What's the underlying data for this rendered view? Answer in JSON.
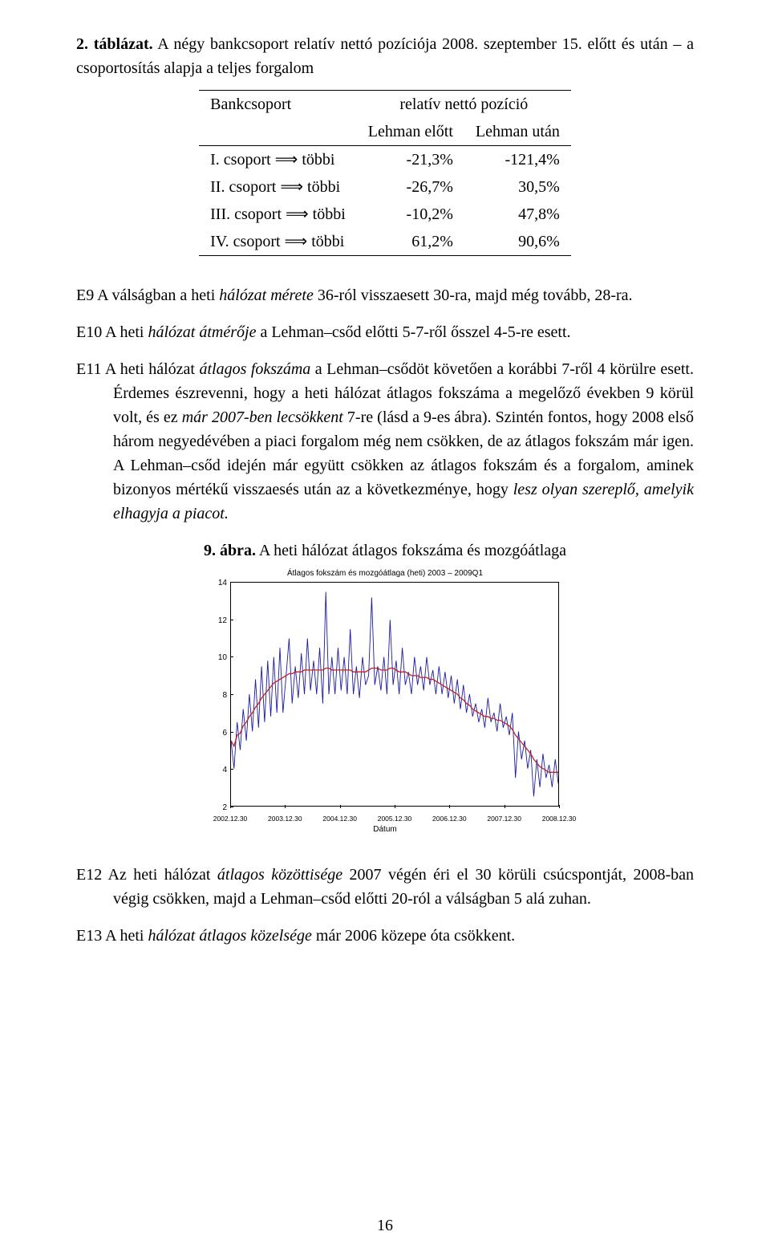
{
  "table_caption": {
    "label": "2. táblázat.",
    "text_a": "A négy bankcsoport relatív nettó pozíciója 2008. szeptember 15. előtt és után – a csoportosítás alapja a teljes forgalom"
  },
  "table": {
    "type": "table",
    "columns": [
      "Bankcsoport",
      "relatív nettó pozíció"
    ],
    "subcolumns": [
      "Lehman előtt",
      "Lehman után"
    ],
    "rows": [
      {
        "label": "I. csoport ⟹ többi",
        "before": "-21,3%",
        "after": "-121,4%"
      },
      {
        "label": "II. csoport ⟹ többi",
        "before": "-26,7%",
        "after": "30,5%"
      },
      {
        "label": "III. csoport ⟹ többi",
        "before": "-10,2%",
        "after": "47,8%"
      },
      {
        "label": "IV. csoport ⟹ többi",
        "before": "61,2%",
        "after": "90,6%"
      }
    ]
  },
  "paragraphs": {
    "e9": "E9 A válságban a heti hálózat mérete 36-ról visszaesett 30-ra, majd még tovább, 28-ra.",
    "e10": "E10 A heti hálózat átmérője a Lehman–csőd előtti 5-7-ről ősszel 4-5-re esett.",
    "e11": "E11 A heti hálózat átlagos fokszáma a Lehman–csődöt követően a korábbi 7-ről 4 körülre esett. Érdemes észrevenni, hogy a heti hálózat átlagos fokszáma a megelőző években 9 körül volt, és ez már 2007-ben lecsökkent 7-re (lásd a 9-es ábra). Szintén fontos, hogy 2008 első három negyedévében a piaci forgalom még nem csökken, de az átlagos fokszám már igen. A Lehman–csőd idején már együtt csökken az átlagos fokszám és a forgalom, aminek bizonyos mértékű visszaesés után az a következménye, hogy lesz olyan szereplő, amelyik elhagyja a piacot.",
    "e12": "E12 Az heti hálózat átlagos közöttisége 2007 végén éri el 30 körüli csúcspontját, 2008-ban végig csökken, majd a Lehman–csőd előtti 20-ról a válságban 5 alá zuhan.",
    "e13": "E13 A heti hálózat átlagos közelsége már 2006 közepe óta csökkent."
  },
  "fig_caption": {
    "label": "9. ábra.",
    "text": "A heti hálózat átlagos fokszáma és mozgóátlaga"
  },
  "chart": {
    "type": "line",
    "title": "Átlagos fokszám és mozgóátlaga (heti) 2003 – 2009Q1",
    "xlabel": "Dátum",
    "ylim": [
      2,
      14
    ],
    "ytick_step": 2,
    "yticks": [
      2,
      4,
      6,
      8,
      10,
      12,
      14
    ],
    "xticks": [
      "2002.12.30",
      "2003.12.30",
      "2004.12.30",
      "2005.12.30",
      "2006.12.30",
      "2007.12.30",
      "2008.12.30"
    ],
    "background_color": "#ffffff",
    "axis_color": "#000000",
    "series": [
      {
        "name": "raw",
        "color": "#1a1aa0",
        "width": 0.9,
        "y": [
          5.5,
          4.0,
          6.5,
          5.0,
          7.2,
          5.5,
          8.0,
          6.0,
          8.8,
          6.2,
          9.5,
          6.5,
          9.8,
          6.8,
          10.0,
          7.0,
          10.5,
          7.0,
          9.0,
          11.0,
          7.5,
          9.5,
          7.8,
          10.2,
          8.0,
          11.0,
          8.2,
          9.8,
          8.0,
          10.5,
          7.5,
          13.5,
          8.0,
          10.0,
          8.0,
          10.5,
          8.2,
          10.0,
          8.0,
          11.5,
          8.0,
          9.5,
          7.8,
          10.0,
          8.5,
          9.0,
          13.2,
          8.5,
          9.5,
          8.2,
          10.0,
          8.0,
          12.0,
          8.5,
          9.8,
          8.0,
          10.5,
          8.5,
          9.2,
          8.0,
          10.0,
          8.5,
          9.5,
          8.2,
          10.0,
          8.5,
          9.3,
          8.0,
          9.5,
          8.0,
          9.2,
          7.8,
          9.0,
          7.5,
          8.8,
          7.2,
          8.5,
          7.0,
          8.0,
          6.8,
          7.5,
          6.5,
          7.2,
          6.2,
          7.8,
          6.5,
          7.0,
          6.0,
          7.5,
          6.2,
          6.8,
          5.8,
          7.0,
          3.5,
          6.0,
          4.5,
          5.5,
          4.0,
          5.0,
          2.5,
          4.5,
          3.0,
          4.8,
          3.5,
          4.2,
          3.0,
          4.5,
          3.2
        ]
      },
      {
        "name": "ma",
        "color": "#c02020",
        "width": 1.3,
        "y": [
          5.5,
          5.2,
          5.8,
          5.9,
          6.3,
          6.5,
          6.8,
          7.0,
          7.3,
          7.5,
          7.8,
          8.0,
          8.2,
          8.4,
          8.6,
          8.7,
          8.8,
          8.9,
          9.0,
          9.1,
          9.1,
          9.2,
          9.2,
          9.2,
          9.3,
          9.3,
          9.3,
          9.3,
          9.3,
          9.3,
          9.3,
          9.4,
          9.4,
          9.3,
          9.3,
          9.3,
          9.3,
          9.3,
          9.3,
          9.3,
          9.2,
          9.2,
          9.2,
          9.2,
          9.2,
          9.3,
          9.4,
          9.4,
          9.4,
          9.3,
          9.3,
          9.3,
          9.4,
          9.4,
          9.3,
          9.2,
          9.2,
          9.2,
          9.1,
          9.0,
          9.0,
          9.0,
          8.9,
          8.9,
          8.9,
          8.8,
          8.8,
          8.7,
          8.6,
          8.5,
          8.4,
          8.3,
          8.2,
          8.1,
          8.0,
          7.8,
          7.7,
          7.5,
          7.4,
          7.2,
          7.1,
          7.0,
          6.9,
          6.8,
          6.8,
          6.7,
          6.7,
          6.6,
          6.6,
          6.5,
          6.4,
          6.3,
          6.1,
          5.8,
          5.6,
          5.4,
          5.2,
          5.0,
          4.8,
          4.5,
          4.3,
          4.1,
          4.0,
          3.9,
          3.8,
          3.8,
          3.8,
          3.8
        ]
      }
    ]
  },
  "pagenum": "16"
}
